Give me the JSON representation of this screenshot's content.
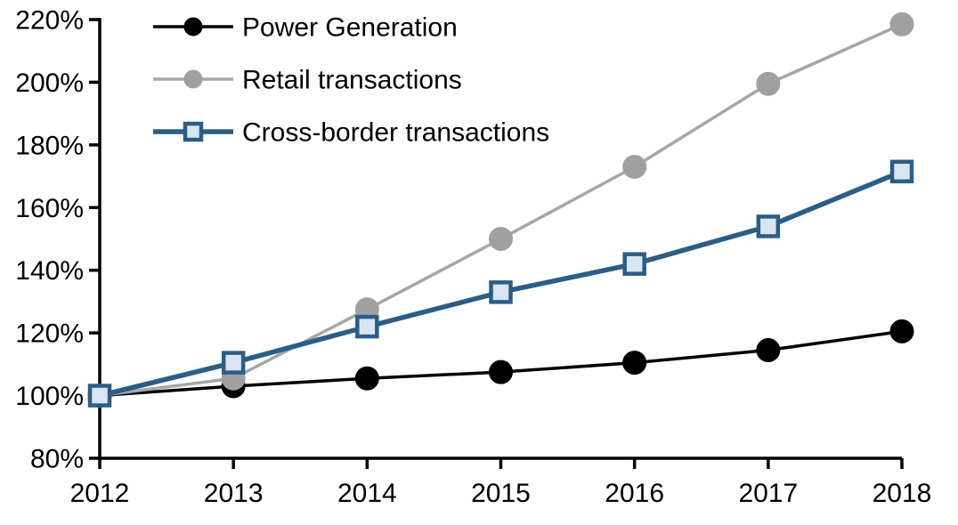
{
  "chart_data": {
    "type": "line",
    "title": "",
    "xlabel": "",
    "ylabel": "",
    "x": [
      2012,
      2013,
      2014,
      2015,
      2016,
      2017,
      2018
    ],
    "xtick_labels": [
      "2012",
      "2013",
      "2014",
      "2015",
      "2016",
      "2017",
      "2018"
    ],
    "ylim": [
      80,
      220
    ],
    "ytick_step": 20,
    "ytick_labels": [
      "80%",
      "100%",
      "120%",
      "140%",
      "160%",
      "180%",
      "200%",
      "220%"
    ],
    "grid": false,
    "legend_position": "top-left",
    "axis_color": "#000000",
    "background_color": "#ffffff",
    "series": [
      {
        "name": "Power Generation",
        "values": [
          100,
          103,
          105.5,
          107.5,
          110.5,
          114.5,
          120.5
        ],
        "line_color": "#000000",
        "line_width": 3.5,
        "marker": "circle",
        "marker_fill": "#000000",
        "marker_stroke": "#000000"
      },
      {
        "name": "Retail transactions",
        "values": [
          100,
          105.5,
          127.5,
          150,
          173,
          199.5,
          218.5
        ],
        "line_color": "#a6a6a6",
        "line_width": 3.5,
        "marker": "circle",
        "marker_fill": "#a0a0a0",
        "marker_stroke": "#a0a0a0"
      },
      {
        "name": "Cross-border transactions",
        "values": [
          100,
          110.5,
          122,
          133,
          142,
          154,
          171.5
        ],
        "line_color": "#2b5d87",
        "line_width": 5.5,
        "marker": "square",
        "marker_fill": "#dbe5f1",
        "marker_stroke": "#2b5d87"
      }
    ]
  }
}
